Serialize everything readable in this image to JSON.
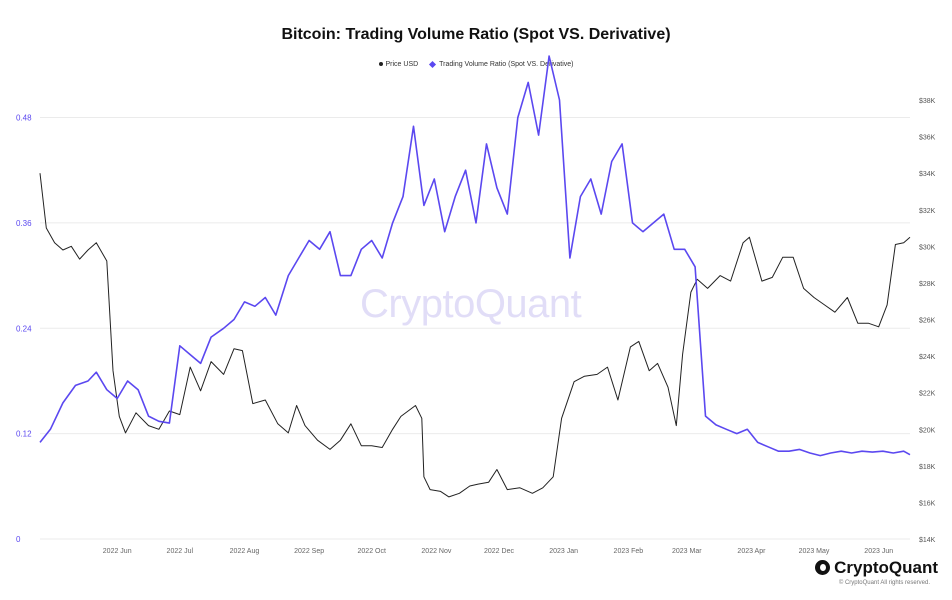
{
  "chart_data": {
    "type": "line",
    "title": "Bitcoin: Trading Volume Ratio (Spot VS. Derivative)",
    "legend": {
      "placement": "top-center"
    },
    "x_ticks": [
      "2022 Jun",
      "2022 Jul",
      "2022 Aug",
      "2022 Sep",
      "2022 Oct",
      "2022 Nov",
      "2022 Dec",
      "2023 Jan",
      "2023 Feb",
      "2023 Mar",
      "2023 Apr",
      "2023 May",
      "2023 Jun"
    ],
    "y_left": {
      "ticks": [
        "0",
        "0.12",
        "0.24",
        "0.36",
        "0.48"
      ],
      "range": [
        0,
        0.5
      ]
    },
    "y_right": {
      "ticks": [
        "$14K",
        "$16K",
        "$18K",
        "$20K",
        "$22K",
        "$24K",
        "$26K",
        "$28K",
        "$30K",
        "$32K",
        "$34K",
        "$36K",
        "$38K"
      ],
      "range": [
        14000,
        38000
      ]
    },
    "grid": true,
    "series": [
      {
        "name": "Price USD",
        "axis": "right",
        "color": "#222222",
        "x": [
          "2022-05-09",
          "2022-05-12",
          "2022-05-16",
          "2022-05-20",
          "2022-05-24",
          "2022-05-28",
          "2022-06-01",
          "2022-06-05",
          "2022-06-10",
          "2022-06-13",
          "2022-06-16",
          "2022-06-19",
          "2022-06-24",
          "2022-06-30",
          "2022-07-05",
          "2022-07-10",
          "2022-07-15",
          "2022-07-20",
          "2022-07-25",
          "2022-07-30",
          "2022-08-05",
          "2022-08-10",
          "2022-08-14",
          "2022-08-19",
          "2022-08-25",
          "2022-08-31",
          "2022-09-05",
          "2022-09-09",
          "2022-09-13",
          "2022-09-19",
          "2022-09-25",
          "2022-09-30",
          "2022-10-05",
          "2022-10-10",
          "2022-10-15",
          "2022-10-20",
          "2022-10-25",
          "2022-10-29",
          "2022-11-05",
          "2022-11-08",
          "2022-11-09",
          "2022-11-12",
          "2022-11-17",
          "2022-11-21",
          "2022-11-26",
          "2022-12-01",
          "2022-12-05",
          "2022-12-10",
          "2022-12-14",
          "2022-12-19",
          "2022-12-25",
          "2022-12-31",
          "2023-01-05",
          "2023-01-10",
          "2023-01-14",
          "2023-01-20",
          "2023-01-25",
          "2023-01-31",
          "2023-02-05",
          "2023-02-10",
          "2023-02-16",
          "2023-02-20",
          "2023-02-25",
          "2023-03-01",
          "2023-03-06",
          "2023-03-10",
          "2023-03-13",
          "2023-03-17",
          "2023-03-20",
          "2023-03-25",
          "2023-03-31",
          "2023-04-05",
          "2023-04-11",
          "2023-04-14",
          "2023-04-20",
          "2023-04-25",
          "2023-04-30",
          "2023-05-05",
          "2023-05-10",
          "2023-05-15",
          "2023-05-20",
          "2023-05-25",
          "2023-05-31",
          "2023-06-05",
          "2023-06-10",
          "2023-06-15",
          "2023-06-19",
          "2023-06-23",
          "2023-06-27",
          "2023-06-30"
        ],
        "values": [
          34000,
          31000,
          30200,
          29800,
          30000,
          29300,
          29800,
          30200,
          29200,
          23200,
          20700,
          19800,
          20900,
          20200,
          20000,
          21000,
          20800,
          23400,
          22100,
          23700,
          23000,
          24400,
          24300,
          21400,
          21600,
          20300,
          19800,
          21300,
          20200,
          19400,
          18900,
          19400,
          20300,
          19100,
          19100,
          19000,
          20000,
          20700,
          21300,
          20600,
          17400,
          16700,
          16600,
          16300,
          16500,
          16900,
          17000,
          17100,
          17800,
          16700,
          16800,
          16500,
          16800,
          17400,
          20600,
          22600,
          22900,
          23000,
          23400,
          21600,
          24500,
          24800,
          23200,
          23600,
          22300,
          20200,
          24100,
          27500,
          28200,
          27700,
          28400,
          28100,
          30200,
          30500,
          28100,
          28300,
          29400,
          29400,
          27700,
          27200,
          26800,
          26400,
          27200,
          25800,
          25800,
          25600,
          26800,
          30100,
          30200,
          30500
        ]
      },
      {
        "name": "Trading Volume Ratio (Spot VS. Derivative)",
        "axis": "left",
        "color": "#5b48f0",
        "x": [
          "2022-05-09",
          "2022-05-14",
          "2022-05-20",
          "2022-05-26",
          "2022-06-01",
          "2022-06-05",
          "2022-06-10",
          "2022-06-15",
          "2022-06-20",
          "2022-06-25",
          "2022-06-30",
          "2022-07-05",
          "2022-07-10",
          "2022-07-15",
          "2022-07-20",
          "2022-07-25",
          "2022-07-30",
          "2022-08-05",
          "2022-08-10",
          "2022-08-15",
          "2022-08-20",
          "2022-08-25",
          "2022-08-30",
          "2022-09-05",
          "2022-09-10",
          "2022-09-15",
          "2022-09-20",
          "2022-09-25",
          "2022-09-30",
          "2022-10-05",
          "2022-10-10",
          "2022-10-15",
          "2022-10-20",
          "2022-10-25",
          "2022-10-30",
          "2022-11-04",
          "2022-11-09",
          "2022-11-14",
          "2022-11-19",
          "2022-11-24",
          "2022-11-29",
          "2022-12-04",
          "2022-12-09",
          "2022-12-14",
          "2022-12-19",
          "2022-12-24",
          "2022-12-29",
          "2023-01-03",
          "2023-01-08",
          "2023-01-13",
          "2023-01-18",
          "2023-01-23",
          "2023-01-28",
          "2023-02-02",
          "2023-02-07",
          "2023-02-12",
          "2023-02-17",
          "2023-02-22",
          "2023-02-27",
          "2023-03-04",
          "2023-03-09",
          "2023-03-14",
          "2023-03-19",
          "2023-03-24",
          "2023-03-29",
          "2023-04-03",
          "2023-04-08",
          "2023-04-13",
          "2023-04-18",
          "2023-04-23",
          "2023-04-28",
          "2023-05-03",
          "2023-05-08",
          "2023-05-13",
          "2023-05-18",
          "2023-05-23",
          "2023-05-28",
          "2023-06-02",
          "2023-06-07",
          "2023-06-12",
          "2023-06-17",
          "2023-06-22",
          "2023-06-27",
          "2023-06-30"
        ],
        "values": [
          0.11,
          0.125,
          0.155,
          0.175,
          0.18,
          0.19,
          0.17,
          0.16,
          0.18,
          0.17,
          0.14,
          0.134,
          0.132,
          0.22,
          0.21,
          0.2,
          0.23,
          0.24,
          0.25,
          0.27,
          0.265,
          0.275,
          0.255,
          0.3,
          0.32,
          0.34,
          0.33,
          0.35,
          0.3,
          0.3,
          0.33,
          0.34,
          0.32,
          0.36,
          0.39,
          0.47,
          0.38,
          0.41,
          0.35,
          0.39,
          0.42,
          0.36,
          0.45,
          0.4,
          0.37,
          0.48,
          0.52,
          0.46,
          0.55,
          0.5,
          0.32,
          0.39,
          0.41,
          0.37,
          0.43,
          0.45,
          0.36,
          0.35,
          0.36,
          0.37,
          0.33,
          0.33,
          0.31,
          0.14,
          0.13,
          0.125,
          0.12,
          0.125,
          0.11,
          0.105,
          0.1,
          0.1,
          0.102,
          0.098,
          0.095,
          0.098,
          0.1,
          0.098,
          0.1,
          0.099,
          0.1,
          0.098,
          0.1,
          0.096
        ]
      }
    ]
  },
  "watermark": "CryptoQuant",
  "brand": {
    "logo_text": "CryptoQuant",
    "copyright": "© CryptoQuant All rights reserved."
  },
  "colors": {
    "accent": "#5b48f0",
    "price": "#222222",
    "grid": "#ebebeb"
  }
}
